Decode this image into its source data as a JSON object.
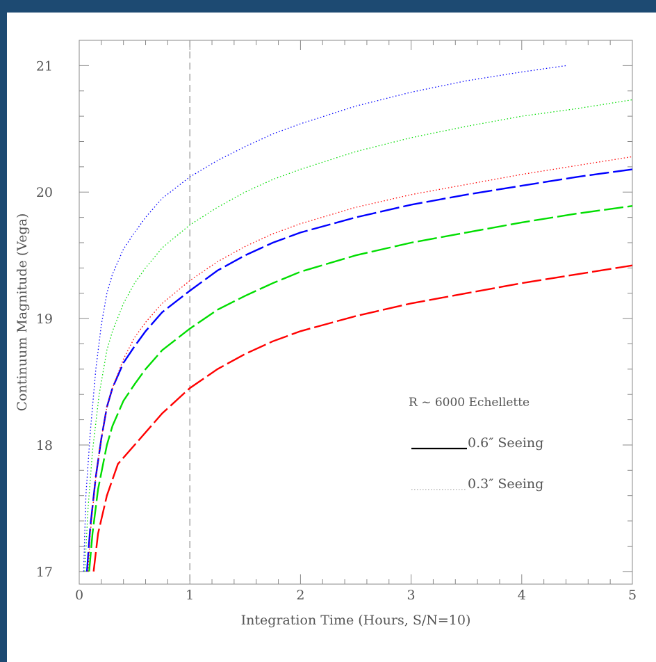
{
  "chart_data": {
    "type": "line",
    "xlabel": "Integration Time (Hours, S/N=10)",
    "ylabel": "Continuum Magnitude (Vega)",
    "xlim": [
      0,
      5
    ],
    "ylim": [
      16.9,
      21.2
    ],
    "x_ticks": [
      "0",
      "1",
      "2",
      "3",
      "4",
      "5"
    ],
    "y_ticks": [
      "17",
      "18",
      "19",
      "20",
      "21"
    ],
    "reference_line_x": 1,
    "annotation": "R ~ 6000 Echellette",
    "legend": [
      {
        "label": "0.6″ Seeing",
        "style": "solid",
        "color": "#000000"
      },
      {
        "label": "0.3″ Seeing",
        "style": "dotted",
        "color": "#aaaaaa"
      }
    ],
    "series": [
      {
        "color": "#0000ff",
        "dash": "long",
        "points": [
          [
            0.07,
            17.0
          ],
          [
            0.1,
            17.35
          ],
          [
            0.15,
            17.75
          ],
          [
            0.2,
            18.05
          ],
          [
            0.25,
            18.3
          ],
          [
            0.3,
            18.45
          ],
          [
            0.4,
            18.65
          ],
          [
            0.5,
            18.78
          ],
          [
            0.6,
            18.9
          ],
          [
            0.75,
            19.05
          ],
          [
            1.0,
            19.22
          ],
          [
            1.25,
            19.38
          ],
          [
            1.5,
            19.5
          ],
          [
            1.75,
            19.6
          ],
          [
            2.0,
            19.68
          ],
          [
            2.5,
            19.8
          ],
          [
            3.0,
            19.9
          ],
          [
            3.5,
            19.98
          ],
          [
            4.0,
            20.05
          ],
          [
            4.5,
            20.12
          ],
          [
            5.0,
            20.18
          ]
        ]
      },
      {
        "color": "#00dd00",
        "dash": "long",
        "points": [
          [
            0.09,
            17.0
          ],
          [
            0.12,
            17.3
          ],
          [
            0.17,
            17.65
          ],
          [
            0.25,
            18.0
          ],
          [
            0.3,
            18.15
          ],
          [
            0.4,
            18.35
          ],
          [
            0.5,
            18.48
          ],
          [
            0.6,
            18.6
          ],
          [
            0.75,
            18.75
          ],
          [
            1.0,
            18.92
          ],
          [
            1.25,
            19.07
          ],
          [
            1.5,
            19.18
          ],
          [
            1.75,
            19.28
          ],
          [
            2.0,
            19.37
          ],
          [
            2.5,
            19.5
          ],
          [
            3.0,
            19.6
          ],
          [
            3.5,
            19.68
          ],
          [
            4.0,
            19.76
          ],
          [
            4.5,
            19.83
          ],
          [
            5.0,
            19.89
          ]
        ]
      },
      {
        "color": "#ff0000",
        "dash": "long",
        "points": [
          [
            0.13,
            17.0
          ],
          [
            0.17,
            17.3
          ],
          [
            0.25,
            17.6
          ],
          [
            0.35,
            17.85
          ],
          [
            0.5,
            18.0
          ],
          [
            0.6,
            18.1
          ],
          [
            0.75,
            18.25
          ],
          [
            1.0,
            18.45
          ],
          [
            1.25,
            18.6
          ],
          [
            1.5,
            18.72
          ],
          [
            1.75,
            18.82
          ],
          [
            2.0,
            18.9
          ],
          [
            2.5,
            19.02
          ],
          [
            3.0,
            19.12
          ],
          [
            3.5,
            19.2
          ],
          [
            4.0,
            19.28
          ],
          [
            4.5,
            19.35
          ],
          [
            5.0,
            19.42
          ]
        ]
      },
      {
        "color": "#0000ff",
        "dash": "dot",
        "points": [
          [
            0.04,
            17.0
          ],
          [
            0.06,
            17.6
          ],
          [
            0.1,
            18.1
          ],
          [
            0.15,
            18.6
          ],
          [
            0.2,
            18.95
          ],
          [
            0.25,
            19.2
          ],
          [
            0.3,
            19.35
          ],
          [
            0.4,
            19.55
          ],
          [
            0.5,
            19.68
          ],
          [
            0.6,
            19.8
          ],
          [
            0.75,
            19.95
          ],
          [
            1.0,
            20.12
          ],
          [
            1.25,
            20.25
          ],
          [
            1.5,
            20.36
          ],
          [
            1.75,
            20.46
          ],
          [
            2.0,
            20.54
          ],
          [
            2.5,
            20.68
          ],
          [
            3.0,
            20.79
          ],
          [
            3.5,
            20.88
          ],
          [
            4.0,
            20.95
          ],
          [
            4.4,
            21.0
          ]
        ]
      },
      {
        "color": "#00dd00",
        "dash": "dot",
        "points": [
          [
            0.05,
            17.0
          ],
          [
            0.08,
            17.5
          ],
          [
            0.12,
            17.95
          ],
          [
            0.18,
            18.4
          ],
          [
            0.25,
            18.75
          ],
          [
            0.3,
            18.9
          ],
          [
            0.4,
            19.12
          ],
          [
            0.5,
            19.28
          ],
          [
            0.6,
            19.4
          ],
          [
            0.75,
            19.56
          ],
          [
            1.0,
            19.74
          ],
          [
            1.25,
            19.88
          ],
          [
            1.5,
            20.0
          ],
          [
            1.75,
            20.1
          ],
          [
            2.0,
            20.18
          ],
          [
            2.5,
            20.32
          ],
          [
            3.0,
            20.43
          ],
          [
            3.5,
            20.52
          ],
          [
            4.0,
            20.6
          ],
          [
            4.5,
            20.66
          ],
          [
            5.0,
            20.73
          ]
        ]
      },
      {
        "color": "#ff0000",
        "dash": "dot",
        "points": [
          [
            0.08,
            17.0
          ],
          [
            0.1,
            17.3
          ],
          [
            0.15,
            17.75
          ],
          [
            0.2,
            18.05
          ],
          [
            0.25,
            18.3
          ],
          [
            0.3,
            18.45
          ],
          [
            0.4,
            18.68
          ],
          [
            0.5,
            18.85
          ],
          [
            0.6,
            18.97
          ],
          [
            0.75,
            19.12
          ],
          [
            1.0,
            19.3
          ],
          [
            1.25,
            19.45
          ],
          [
            1.5,
            19.57
          ],
          [
            1.75,
            19.67
          ],
          [
            2.0,
            19.75
          ],
          [
            2.5,
            19.88
          ],
          [
            3.0,
            19.98
          ],
          [
            3.5,
            20.06
          ],
          [
            4.0,
            20.14
          ],
          [
            4.5,
            20.21
          ],
          [
            5.0,
            20.28
          ]
        ]
      }
    ]
  }
}
